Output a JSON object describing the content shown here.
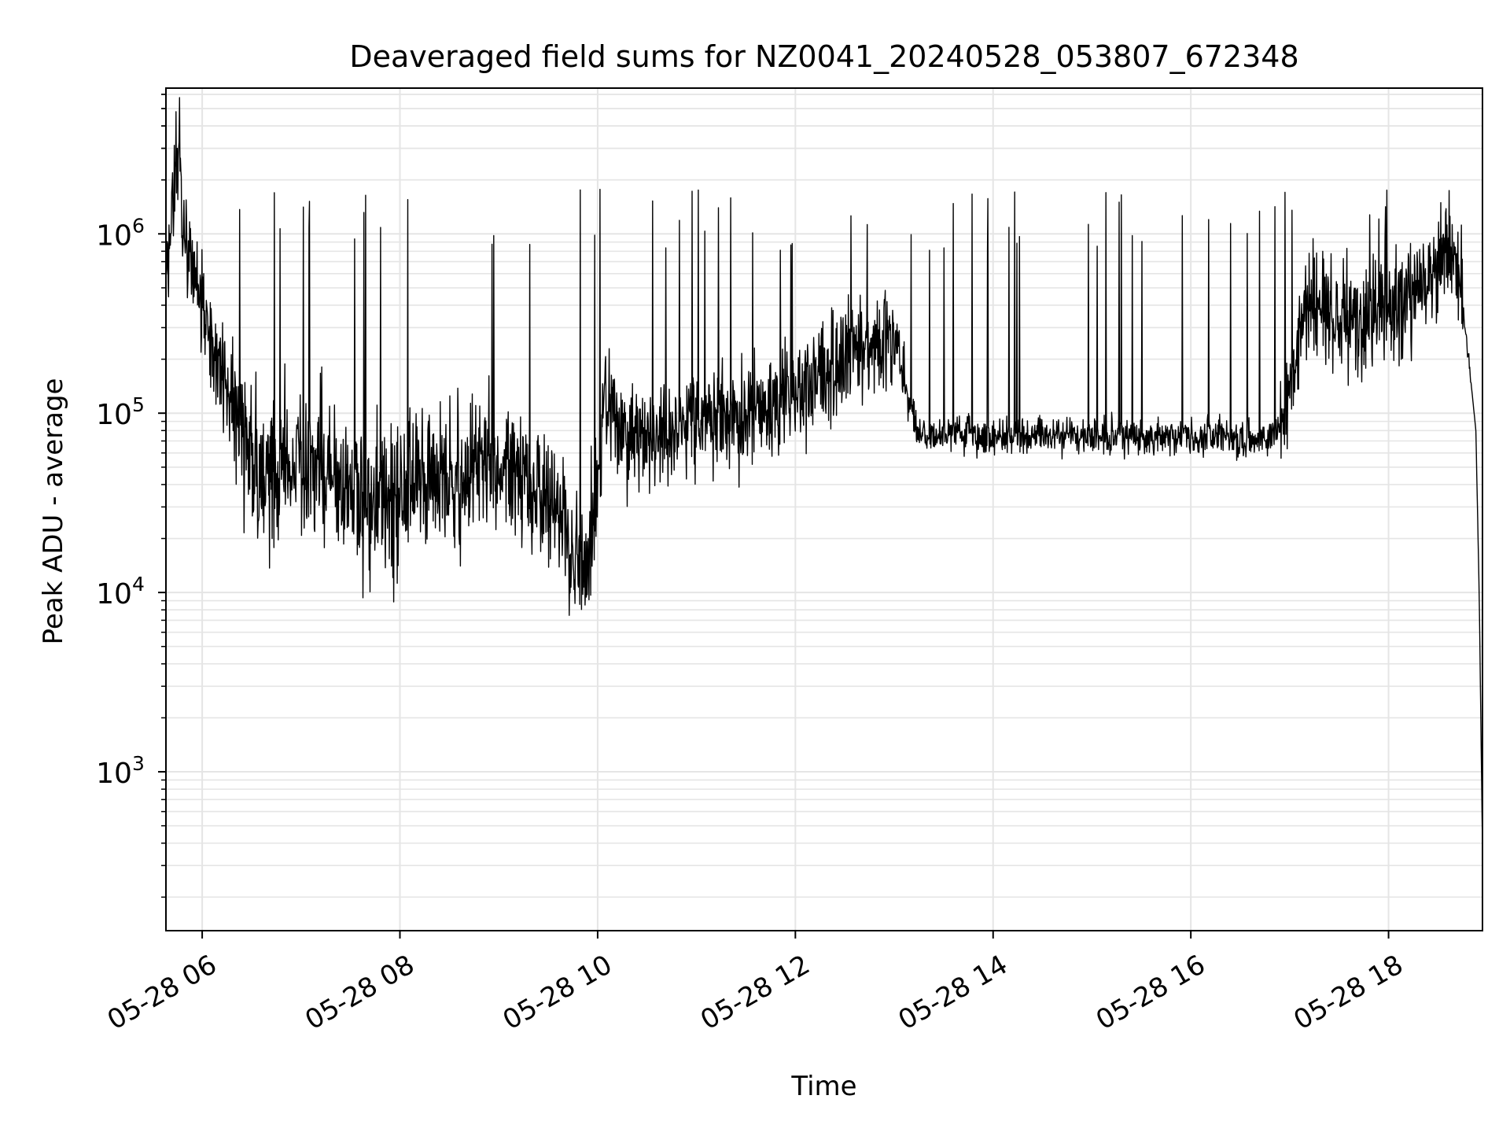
{
  "chart_data": {
    "type": "line",
    "title": "Deaveraged field sums for NZ0041_20240528_053807_672348",
    "xlabel": "Time",
    "ylabel": "Peak ADU - average",
    "yscale": "log",
    "xlim": [
      "2024-05-28T05:38",
      "2024-05-28T18:57"
    ],
    "ylim": [
      130,
      6500000
    ],
    "x_ticks": [
      "05-28 06",
      "05-28 08",
      "05-28 10",
      "05-28 12",
      "05-28 14",
      "05-28 16",
      "05-28 18"
    ],
    "x_tick_times": [
      "2024-05-28T06:00",
      "2024-05-28T08:00",
      "2024-05-28T10:00",
      "2024-05-28T12:00",
      "2024-05-28T14:00",
      "2024-05-28T16:00",
      "2024-05-28T18:00"
    ],
    "y_ticks": [
      {
        "value": 1000,
        "base": "10",
        "exp": "3"
      },
      {
        "value": 10000,
        "base": "10",
        "exp": "4"
      },
      {
        "value": 100000,
        "base": "10",
        "exp": "5"
      },
      {
        "value": 1000000,
        "base": "10",
        "exp": "6"
      }
    ],
    "grid": true,
    "line_color": "#000000",
    "grid_color": "#e5e5e5",
    "series": [
      {
        "x": [
          "2024-05-28T05:38",
          "2024-05-28T05:46",
          "2024-05-28T05:48",
          "2024-05-28T05:54",
          "2024-05-28T05:58",
          "2024-05-28T06:05",
          "2024-05-28T06:15",
          "2024-05-28T06:25",
          "2024-05-28T06:35",
          "2024-05-28T06:45",
          "2024-05-28T06:55",
          "2024-05-28T07:10",
          "2024-05-28T07:30",
          "2024-05-28T07:50",
          "2024-05-28T08:10",
          "2024-05-28T08:30",
          "2024-05-28T08:50",
          "2024-05-28T09:10",
          "2024-05-28T09:25",
          "2024-05-28T09:38",
          "2024-05-28T09:45",
          "2024-05-28T09:50",
          "2024-05-28T09:58",
          "2024-05-28T10:05",
          "2024-05-28T10:20",
          "2024-05-28T10:40",
          "2024-05-28T11:00",
          "2024-05-28T11:20",
          "2024-05-28T11:40",
          "2024-05-28T12:00",
          "2024-05-28T12:20",
          "2024-05-28T12:40",
          "2024-05-28T13:00",
          "2024-05-28T13:08",
          "2024-05-28T13:15",
          "2024-05-28T13:40",
          "2024-05-28T14:00",
          "2024-05-28T14:30",
          "2024-05-28T15:00",
          "2024-05-28T15:30",
          "2024-05-28T16:00",
          "2024-05-28T16:30",
          "2024-05-28T16:50",
          "2024-05-28T16:55",
          "2024-05-28T17:10",
          "2024-05-28T17:30",
          "2024-05-28T17:50",
          "2024-05-28T18:10",
          "2024-05-28T18:30",
          "2024-05-28T18:40",
          "2024-05-28T18:45",
          "2024-05-28T18:50",
          "2024-05-28T18:53",
          "2024-05-28T18:55",
          "2024-05-28T18:57"
        ],
        "y": [
          600000,
          3500000,
          1200000,
          600000,
          400000,
          250000,
          150000,
          70000,
          45000,
          40000,
          60000,
          50000,
          35000,
          30000,
          45000,
          40000,
          50000,
          45000,
          35000,
          28000,
          15000,
          12000,
          25000,
          150000,
          70000,
          80000,
          90000,
          95000,
          110000,
          120000,
          180000,
          220000,
          250000,
          120000,
          75000,
          75000,
          72000,
          75000,
          75000,
          75000,
          75000,
          72000,
          75000,
          90000,
          400000,
          350000,
          350000,
          400000,
          650000,
          900000,
          400000,
          150000,
          80000,
          10000,
          380
        ]
      }
    ],
    "noise_seed": 672348
  }
}
